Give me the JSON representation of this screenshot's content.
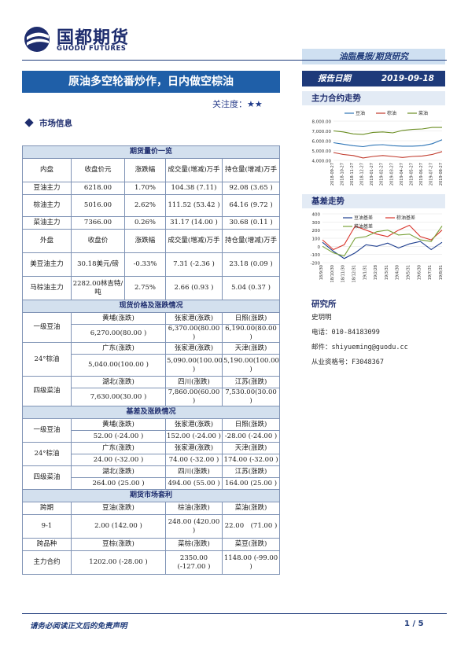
{
  "header": {
    "logo_cn": "国都期货",
    "logo_en": "GUODU FUTURES",
    "report_type": "油脂晨报/期货研究"
  },
  "title": "原油多空轮番炒作，日内做空棕油",
  "attention": {
    "label": "关注度：",
    "stars": "★★"
  },
  "section_market": "市场信息",
  "report_date": {
    "label": "报告日期",
    "value": "2019-09-18"
  },
  "tables": {
    "futures": {
      "title": "期货量价一览",
      "domestic_headers": [
        "内盘",
        "收盘价元",
        "涨跌幅",
        "成交量(增减)万手",
        "持仓量(增减)万手"
      ],
      "domestic_rows": [
        [
          "豆油主力",
          "6218.00",
          "1.70%",
          "104.38 (7.11)",
          "92.08 (3.65 )"
        ],
        [
          "棕油主力",
          "5016.00",
          "2.62%",
          "111.52 (53.42 )",
          "64.16 (9.72 )"
        ],
        [
          "菜油主力",
          "7366.00",
          "0.26%",
          "31.17 (14.00 )",
          "30.68 (0.11 )"
        ]
      ],
      "foreign_headers": [
        "外盘",
        "收盘价",
        "涨跌幅",
        "成交量(增减)万手",
        "持仓量(增减)万手"
      ],
      "foreign_rows": [
        [
          "美豆油主力",
          "30.18美元/磅",
          "-0.33%",
          "7.31 (-2.36 )",
          "23.18 (0.09 )"
        ],
        [
          "马棕油主力",
          "2282.00林吉特/吨",
          "2.75%",
          "2.66 (0.93 )",
          "5.04 (0.37 )"
        ]
      ]
    },
    "spot": {
      "title": "现货价格及涨跌情况",
      "blocks": [
        {
          "label": "一级豆油",
          "regions": [
            "黄埔(涨跌)",
            "张家港(涨跌)",
            "日照(涨跌)"
          ],
          "values": [
            "6,270.00(80.00 )",
            "6,370.00(80.00 )",
            "6,190.00(80.00 )"
          ]
        },
        {
          "label": "24°棕油",
          "regions": [
            "广东(涨跌)",
            "张家港(涨跌)",
            "天津(涨跌)"
          ],
          "values": [
            "5,040.00(100.00 )",
            "5,090.00(100.00 )",
            "5,190.00(100.00 )"
          ]
        },
        {
          "label": "四级菜油",
          "regions": [
            "湖北(涨跌)",
            "四川(涨跌)",
            "江苏(涨跌)"
          ],
          "values": [
            "7,630.00(30.00 )",
            "7,860.00(60.00 )",
            "7,530.00(30.00 )"
          ]
        }
      ]
    },
    "basis": {
      "title": "基差及涨跌情况",
      "blocks": [
        {
          "label": "一级豆油",
          "regions": [
            "黄埔(涨跌)",
            "张家港(涨跌)",
            "日照(涨跌)"
          ],
          "values": [
            "52.00 (-24.00 )",
            "152.00 (-24.00 )",
            "-28.00 (-24.00 )"
          ]
        },
        {
          "label": "24°棕油",
          "regions": [
            "广东(涨跌)",
            "张家港(涨跌)",
            "天津(涨跌)"
          ],
          "values": [
            "24.00 (-32.00 )",
            "74.00 (-32.00 )",
            "174.00 (-32.00 )"
          ]
        },
        {
          "label": "四级菜油",
          "regions": [
            "湖北(涨跌)",
            "四川(涨跌)",
            "江苏(涨跌)"
          ],
          "values": [
            "264.00 (25.00 )",
            "494.00 (55.00 )",
            "164.00 (25.00 )"
          ]
        }
      ]
    },
    "arb": {
      "title": "期货市场套利",
      "headers1": [
        "跨期",
        "豆油(涨跌)",
        "棕油(涨跌)",
        "菜油(涨跌)"
      ],
      "row1": [
        "9-1",
        "2.00 (142.00 )",
        "248.00 (420.00 )",
        "22.00　(71.00 )"
      ],
      "headers2": [
        "跨品种",
        "豆棕(涨跌)",
        "菜棕(涨跌)",
        "菜豆(涨跌)"
      ],
      "row2": [
        "主力合约",
        "1202.00 (-28.00 )",
        "2350.00 (-127.00 )",
        "1148.00 (-99.00 )"
      ]
    }
  },
  "sidebar": {
    "main_contract": {
      "title": "主力合约走势",
      "legend": [
        "豆油",
        "棕油",
        "菜油"
      ],
      "colors": [
        "#2e75b6",
        "#c0392b",
        "#6b8e23"
      ]
    },
    "basis_trend": {
      "title": "基差走势",
      "legend": [
        "豆油基差",
        "棕油基差",
        "菜油基差"
      ],
      "colors": [
        "#1f3f8f",
        "#d9342b",
        "#7aa23a"
      ]
    },
    "analyst": {
      "title": "研究所",
      "name": "史玥明",
      "phone": "电话：010-84183099",
      "email": "邮件：shiyueming@guodu.cc",
      "license": "从业资格号：F3048367"
    }
  },
  "chart_data": [
    {
      "type": "line",
      "title": "主力合约走势",
      "x": [
        "2018-09-27",
        "2018-10-27",
        "2018-11-27",
        "2018-12-27",
        "2019-01-27",
        "2019-02-27",
        "2019-03-27",
        "2019-04-27",
        "2019-05-27",
        "2019-06-27",
        "2019-07-27",
        "2019-08-27"
      ],
      "ylim": [
        4000,
        8000
      ],
      "yticks": [
        "8,000.00",
        "7,000.00",
        "6,000.00",
        "5,000.00",
        "4,000.00"
      ],
      "series": [
        {
          "name": "豆油",
          "values": [
            5800,
            5650,
            5500,
            5400,
            5550,
            5600,
            5500,
            5450,
            5450,
            5500,
            5700,
            6100
          ]
        },
        {
          "name": "棕油",
          "values": [
            4800,
            4600,
            4500,
            4250,
            4400,
            4500,
            4400,
            4300,
            4400,
            4450,
            4600,
            4900
          ]
        },
        {
          "name": "菜油",
          "values": [
            7000,
            6900,
            6700,
            6650,
            6850,
            6900,
            6800,
            7050,
            7150,
            7200,
            7350,
            7350
          ]
        }
      ],
      "legend": "top-right"
    },
    {
      "type": "line",
      "title": "基差走势",
      "x": [
        "18/9/30",
        "18/10/30",
        "18/11/30",
        "18/12/31",
        "19/1/31",
        "19/2/28",
        "19/3/31",
        "19/4/30",
        "19/5/31",
        "19/6/30",
        "19/7/31",
        "19/8/31"
      ],
      "ylim": [
        -200,
        400
      ],
      "yticks": [
        "400",
        "300",
        "200",
        "100",
        "0",
        "-100",
        "-200"
      ],
      "series": [
        {
          "name": "豆油基差",
          "values": [
            50,
            -60,
            -150,
            -80,
            20,
            0,
            40,
            -20,
            30,
            60,
            -40,
            50
          ]
        },
        {
          "name": "棕油基差",
          "values": [
            80,
            -40,
            20,
            250,
            200,
            150,
            120,
            200,
            260,
            120,
            80,
            200
          ]
        },
        {
          "name": "菜油基差",
          "values": [
            0,
            -80,
            -120,
            100,
            120,
            180,
            200,
            140,
            150,
            80,
            60,
            250
          ]
        }
      ],
      "legend": "top"
    }
  ],
  "footer": {
    "disclaimer": "请务必阅读正文后的免责声明",
    "page": "1 / 5"
  }
}
